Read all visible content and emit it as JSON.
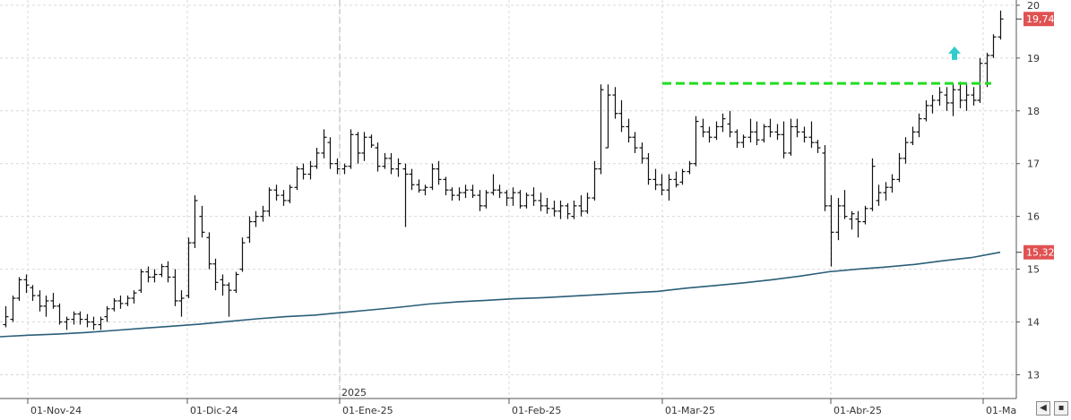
{
  "chart_data": {
    "type": "ohlc",
    "ylim": [
      12.55,
      20.1
    ],
    "y_ticks": [
      "13",
      "14",
      "15",
      "16",
      "17",
      "18",
      "19",
      "20"
    ],
    "x_labels": [
      "01-Nov-24",
      "01-Dic-24",
      "01-Ene-25",
      "01-Feb-25",
      "01-Mar-25",
      "01-Abr-25",
      "01-Ma"
    ],
    "year_label": "2025",
    "last_price": {
      "label": "19,74",
      "value": 19.74,
      "color": "#e05252"
    },
    "ma_price": {
      "label": "15,32",
      "value": 15.32,
      "color": "#e05252"
    },
    "ma_color": "#2a5e78",
    "bar_color": "#111111",
    "resistance": {
      "value": 18.52,
      "color": "#22dd22"
    },
    "breakout_arrow": {
      "value": 19.05,
      "color": "#33cccc"
    },
    "moving_average": [
      13.72,
      13.75,
      13.77,
      13.8,
      13.84,
      13.88,
      13.92,
      13.96,
      14.01,
      14.06,
      14.1,
      14.13,
      14.18,
      14.23,
      14.28,
      14.34,
      14.38,
      14.41,
      14.44,
      14.46,
      14.49,
      14.52,
      14.55,
      14.58,
      14.64,
      14.69,
      14.74,
      14.8,
      14.87,
      14.95,
      15.0,
      15.04,
      15.09,
      15.16,
      15.22,
      15.32
    ],
    "bars": [
      [
        13.95,
        14.3,
        13.9,
        14.1
      ],
      [
        14.05,
        14.5,
        14.0,
        14.45
      ],
      [
        14.45,
        14.85,
        14.4,
        14.8
      ],
      [
        14.8,
        14.9,
        14.55,
        14.7
      ],
      [
        14.65,
        14.7,
        14.4,
        14.5
      ],
      [
        14.5,
        14.6,
        14.2,
        14.3
      ],
      [
        14.3,
        14.5,
        14.1,
        14.4
      ],
      [
        14.4,
        14.55,
        14.25,
        14.3
      ],
      [
        14.3,
        14.35,
        13.95,
        14.0
      ],
      [
        14.0,
        14.1,
        13.85,
        14.05
      ],
      [
        14.05,
        14.2,
        13.95,
        14.15
      ],
      [
        14.15,
        14.2,
        13.95,
        14.05
      ],
      [
        14.05,
        14.15,
        13.9,
        14.0
      ],
      [
        14.0,
        14.1,
        13.85,
        13.95
      ],
      [
        13.95,
        14.1,
        13.85,
        14.05
      ],
      [
        14.1,
        14.3,
        14.0,
        14.25
      ],
      [
        14.25,
        14.45,
        14.2,
        14.4
      ],
      [
        14.4,
        14.5,
        14.25,
        14.35
      ],
      [
        14.35,
        14.5,
        14.3,
        14.45
      ],
      [
        14.45,
        14.6,
        14.35,
        14.55
      ],
      [
        14.6,
        15.0,
        14.55,
        14.95
      ],
      [
        14.95,
        15.05,
        14.75,
        14.85
      ],
      [
        14.85,
        15.0,
        14.75,
        14.9
      ],
      [
        14.9,
        15.1,
        14.85,
        15.05
      ],
      [
        15.05,
        15.15,
        14.75,
        14.85
      ],
      [
        14.85,
        15.0,
        14.3,
        14.4
      ],
      [
        14.4,
        14.6,
        14.1,
        14.45
      ],
      [
        14.5,
        15.6,
        14.45,
        15.5
      ],
      [
        15.5,
        16.4,
        15.4,
        16.3
      ],
      [
        16.0,
        16.2,
        15.6,
        15.7
      ],
      [
        15.6,
        15.7,
        15.0,
        15.1
      ],
      [
        15.1,
        15.2,
        14.6,
        14.75
      ],
      [
        14.8,
        14.9,
        14.5,
        14.7
      ],
      [
        14.7,
        14.75,
        14.1,
        14.6
      ],
      [
        14.6,
        14.95,
        14.55,
        14.9
      ],
      [
        15.0,
        15.6,
        14.95,
        15.5
      ],
      [
        15.6,
        16.0,
        15.5,
        15.9
      ],
      [
        15.9,
        16.1,
        15.8,
        16.0
      ],
      [
        16.0,
        16.2,
        15.9,
        16.1
      ],
      [
        16.1,
        16.55,
        16.0,
        16.5
      ],
      [
        16.5,
        16.6,
        16.3,
        16.4
      ],
      [
        16.4,
        16.5,
        16.2,
        16.3
      ],
      [
        16.3,
        16.6,
        16.25,
        16.55
      ],
      [
        16.55,
        16.95,
        16.5,
        16.9
      ],
      [
        16.9,
        17.0,
        16.7,
        16.8
      ],
      [
        16.8,
        17.05,
        16.7,
        16.95
      ],
      [
        16.95,
        17.3,
        16.9,
        17.2
      ],
      [
        17.2,
        17.65,
        17.1,
        17.5
      ],
      [
        17.4,
        17.5,
        16.9,
        17.0
      ],
      [
        17.0,
        17.1,
        16.8,
        16.9
      ],
      [
        16.9,
        17.0,
        16.8,
        16.95
      ],
      [
        16.95,
        17.65,
        16.9,
        17.55
      ],
      [
        17.55,
        17.6,
        17.0,
        17.2
      ],
      [
        17.2,
        17.6,
        17.05,
        17.5
      ],
      [
        17.5,
        17.55,
        17.3,
        17.35
      ],
      [
        17.3,
        17.4,
        16.85,
        16.95
      ],
      [
        16.95,
        17.2,
        16.9,
        17.1
      ],
      [
        17.1,
        17.2,
        16.8,
        16.9
      ],
      [
        16.9,
        17.1,
        16.75,
        17.0
      ],
      [
        16.9,
        17.0,
        15.8,
        16.8
      ],
      [
        16.8,
        16.9,
        16.5,
        16.6
      ],
      [
        16.6,
        16.7,
        16.45,
        16.5
      ],
      [
        16.5,
        16.6,
        16.4,
        16.55
      ],
      [
        16.55,
        17.0,
        16.5,
        16.9
      ],
      [
        16.9,
        17.05,
        16.6,
        16.7
      ],
      [
        16.7,
        16.75,
        16.4,
        16.5
      ],
      [
        16.5,
        16.55,
        16.3,
        16.4
      ],
      [
        16.4,
        16.55,
        16.3,
        16.45
      ],
      [
        16.45,
        16.6,
        16.35,
        16.5
      ],
      [
        16.5,
        16.6,
        16.35,
        16.4
      ],
      [
        16.4,
        16.5,
        16.1,
        16.2
      ],
      [
        16.2,
        16.5,
        16.15,
        16.45
      ],
      [
        16.45,
        16.8,
        16.4,
        16.5
      ],
      [
        16.5,
        16.6,
        16.35,
        16.45
      ],
      [
        16.45,
        16.5,
        16.2,
        16.35
      ],
      [
        16.35,
        16.55,
        16.2,
        16.45
      ],
      [
        16.45,
        16.5,
        16.15,
        16.2
      ],
      [
        16.2,
        16.45,
        16.15,
        16.4
      ],
      [
        16.4,
        16.55,
        16.2,
        16.3
      ],
      [
        16.3,
        16.45,
        16.1,
        16.2
      ],
      [
        16.2,
        16.35,
        16.05,
        16.15
      ],
      [
        16.15,
        16.3,
        16.0,
        16.1
      ],
      [
        16.1,
        16.3,
        15.95,
        16.2
      ],
      [
        16.2,
        16.25,
        15.95,
        16.05
      ],
      [
        16.0,
        16.3,
        15.95,
        16.2
      ],
      [
        16.2,
        16.4,
        16.0,
        16.1
      ],
      [
        16.1,
        16.45,
        16.05,
        16.35
      ],
      [
        16.35,
        17.05,
        16.3,
        16.9
      ],
      [
        16.9,
        18.5,
        16.8,
        18.4
      ],
      [
        17.3,
        18.5,
        17.3,
        18.3
      ],
      [
        18.3,
        18.45,
        17.85,
        17.95
      ],
      [
        17.95,
        18.2,
        17.6,
        17.7
      ],
      [
        17.7,
        17.85,
        17.4,
        17.5
      ],
      [
        17.5,
        17.6,
        17.2,
        17.3
      ],
      [
        17.3,
        17.4,
        17.0,
        17.1
      ],
      [
        17.1,
        17.2,
        16.6,
        16.7
      ],
      [
        16.7,
        16.9,
        16.5,
        16.6
      ],
      [
        16.6,
        16.8,
        16.4,
        16.5
      ],
      [
        16.5,
        16.8,
        16.3,
        16.7
      ],
      [
        16.7,
        16.85,
        16.55,
        16.6
      ],
      [
        16.65,
        16.9,
        16.6,
        16.85
      ],
      [
        16.85,
        17.05,
        16.8,
        17.0
      ],
      [
        17.0,
        17.9,
        16.95,
        17.8
      ],
      [
        17.7,
        17.85,
        17.5,
        17.6
      ],
      [
        17.6,
        17.7,
        17.4,
        17.5
      ],
      [
        17.5,
        17.8,
        17.45,
        17.7
      ],
      [
        17.7,
        17.95,
        17.6,
        17.85
      ],
      [
        17.75,
        18.0,
        17.5,
        17.6
      ],
      [
        17.6,
        17.65,
        17.3,
        17.4
      ],
      [
        17.4,
        17.55,
        17.3,
        17.5
      ],
      [
        17.5,
        17.85,
        17.4,
        17.6
      ],
      [
        17.6,
        17.8,
        17.35,
        17.45
      ],
      [
        17.45,
        17.75,
        17.4,
        17.7
      ],
      [
        17.7,
        17.85,
        17.5,
        17.6
      ],
      [
        17.6,
        17.75,
        17.45,
        17.55
      ],
      [
        17.55,
        17.8,
        17.1,
        17.2
      ],
      [
        17.2,
        17.85,
        17.15,
        17.7
      ],
      [
        17.7,
        17.85,
        17.5,
        17.6
      ],
      [
        17.6,
        17.7,
        17.4,
        17.5
      ],
      [
        17.5,
        17.8,
        17.3,
        17.4
      ],
      [
        17.4,
        17.45,
        17.2,
        17.3
      ],
      [
        17.2,
        17.35,
        16.1,
        16.2
      ],
      [
        16.2,
        16.4,
        15.05,
        15.7
      ],
      [
        15.7,
        16.35,
        15.55,
        16.2
      ],
      [
        16.2,
        16.5,
        15.95,
        16.0
      ],
      [
        15.95,
        16.1,
        15.75,
        16.05
      ],
      [
        15.95,
        16.1,
        15.6,
        15.9
      ],
      [
        15.9,
        16.2,
        15.85,
        16.15
      ],
      [
        16.15,
        17.1,
        16.1,
        16.95
      ],
      [
        16.3,
        16.6,
        16.2,
        16.45
      ],
      [
        16.45,
        16.65,
        16.3,
        16.55
      ],
      [
        16.55,
        16.8,
        16.45,
        16.7
      ],
      [
        16.7,
        17.2,
        16.65,
        17.1
      ],
      [
        17.1,
        17.5,
        17.0,
        17.4
      ],
      [
        17.4,
        17.7,
        17.35,
        17.6
      ],
      [
        17.6,
        17.95,
        17.5,
        17.85
      ],
      [
        17.85,
        18.2,
        17.8,
        18.1
      ],
      [
        18.1,
        18.3,
        17.95,
        18.2
      ],
      [
        18.2,
        18.45,
        18.1,
        18.35
      ],
      [
        18.3,
        18.45,
        18.0,
        18.15
      ],
      [
        18.15,
        18.5,
        17.9,
        18.4
      ],
      [
        18.4,
        18.55,
        18.05,
        18.2
      ],
      [
        18.2,
        18.5,
        18.0,
        18.3
      ],
      [
        18.3,
        18.45,
        18.1,
        18.2
      ],
      [
        18.2,
        19.0,
        18.15,
        18.9
      ],
      [
        18.9,
        19.1,
        18.45,
        19.05
      ],
      [
        19.05,
        19.45,
        19.0,
        19.4
      ],
      [
        19.4,
        19.9,
        19.35,
        19.74
      ]
    ]
  },
  "ui": {
    "nav_left_label": "◀",
    "save_label": "▪"
  }
}
